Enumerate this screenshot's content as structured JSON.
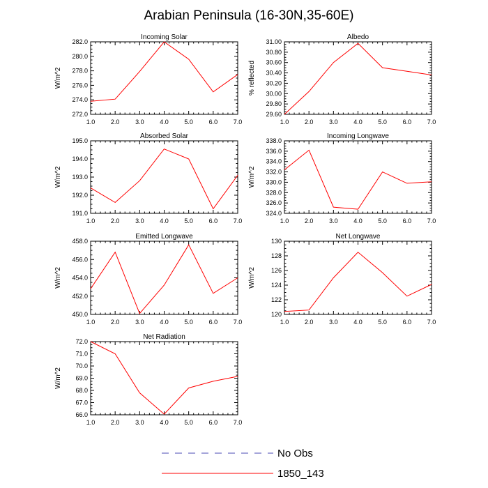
{
  "figure": {
    "title": "Arabian Peninsula (16-30N,35-60E)"
  },
  "colors": {
    "series": "#ff0000",
    "obs": "#4b4bb4",
    "axis": "#000000"
  },
  "legend": {
    "items": [
      {
        "label": "No Obs",
        "color": "#4b4bb4",
        "style": "dashed"
      },
      {
        "label": "1850_143",
        "color": "#ff0000",
        "style": "solid"
      }
    ]
  },
  "chart_data": [
    {
      "type": "line",
      "title": "Incoming Solar",
      "ylabel": "W/m^2",
      "x": [
        1,
        2,
        3,
        4,
        5,
        6,
        7
      ],
      "xlim": [
        1,
        7
      ],
      "xticks": [
        "1.0",
        "2.0",
        "3.0",
        "4.0",
        "5.0",
        "6.0",
        "7.0"
      ],
      "ylim": [
        272,
        282
      ],
      "yticks": [
        "272.0",
        "274.0",
        "276.0",
        "278.0",
        "280.0",
        "282.0"
      ],
      "series": [
        {
          "name": "1850_143",
          "values": [
            273.8,
            274.1,
            277.9,
            282.0,
            279.6,
            275.1,
            277.5
          ]
        }
      ]
    },
    {
      "type": "line",
      "title": "Albedo",
      "ylabel": "% reflected",
      "x": [
        1,
        2,
        3,
        4,
        5,
        6,
        7
      ],
      "xlim": [
        1,
        7
      ],
      "xticks": [
        "1.0",
        "2.0",
        "3.0",
        "4.0",
        "5.0",
        "6.0",
        "7.0"
      ],
      "ylim": [
        29.6,
        31.0
      ],
      "yticks": [
        "29.60",
        "29.80",
        "30.00",
        "30.20",
        "30.40",
        "30.60",
        "30.80",
        "31.00"
      ],
      "series": [
        {
          "name": "1850_143",
          "values": [
            29.6,
            30.04,
            30.6,
            30.97,
            30.5,
            30.43,
            30.36
          ]
        }
      ]
    },
    {
      "type": "line",
      "title": "Absorbed Solar",
      "ylabel": "W/m^2",
      "x": [
        1,
        2,
        3,
        4,
        5,
        6,
        7
      ],
      "xlim": [
        1,
        7
      ],
      "xticks": [
        "1.0",
        "2.0",
        "3.0",
        "4.0",
        "5.0",
        "6.0",
        "7.0"
      ],
      "ylim": [
        191,
        195
      ],
      "yticks": [
        "191.0",
        "192.0",
        "193.0",
        "194.0",
        "195.0"
      ],
      "series": [
        {
          "name": "1850_143",
          "values": [
            192.4,
            191.6,
            192.8,
            194.55,
            194.0,
            191.25,
            193.1
          ]
        }
      ]
    },
    {
      "type": "line",
      "title": "Incoming Longwave",
      "ylabel": "W/m^2",
      "x": [
        1,
        2,
        3,
        4,
        5,
        6,
        7
      ],
      "xlim": [
        1,
        7
      ],
      "xticks": [
        "1.0",
        "2.0",
        "3.0",
        "4.0",
        "5.0",
        "6.0",
        "7.0"
      ],
      "ylim": [
        324,
        338
      ],
      "yticks": [
        "324.0",
        "326.0",
        "328.0",
        "330.0",
        "332.0",
        "334.0",
        "336.0",
        "338.0"
      ],
      "series": [
        {
          "name": "1850_143",
          "values": [
            332.4,
            336.2,
            325.2,
            324.8,
            332.0,
            329.8,
            330.1
          ]
        }
      ]
    },
    {
      "type": "line",
      "title": "Emitted Longwave",
      "ylabel": "W/m^2",
      "x": [
        1,
        2,
        3,
        4,
        5,
        6,
        7
      ],
      "xlim": [
        1,
        7
      ],
      "xticks": [
        "1.0",
        "2.0",
        "3.0",
        "4.0",
        "5.0",
        "6.0",
        "7.0"
      ],
      "ylim": [
        450,
        458
      ],
      "yticks": [
        "450.0",
        "452.0",
        "454.0",
        "456.0",
        "458.0"
      ],
      "series": [
        {
          "name": "1850_143",
          "values": [
            452.8,
            456.8,
            450.1,
            453.2,
            457.6,
            452.3,
            454.0
          ]
        }
      ]
    },
    {
      "type": "line",
      "title": "Net Longwave",
      "ylabel": "W/m^2",
      "x": [
        1,
        2,
        3,
        4,
        5,
        6,
        7
      ],
      "xlim": [
        1,
        7
      ],
      "xticks": [
        "1.0",
        "2.0",
        "3.0",
        "4.0",
        "5.0",
        "6.0",
        "7.0"
      ],
      "ylim": [
        120,
        130
      ],
      "yticks": [
        "120",
        "122",
        "124",
        "126",
        "128",
        "130"
      ],
      "series": [
        {
          "name": "1850_143",
          "values": [
            120.4,
            120.6,
            125.0,
            128.5,
            125.7,
            122.5,
            124.1
          ]
        }
      ]
    },
    {
      "type": "line",
      "title": "Net Radiation",
      "ylabel": "W/m^2",
      "x": [
        1,
        2,
        3,
        4,
        5,
        6,
        7
      ],
      "xlim": [
        1,
        7
      ],
      "xticks": [
        "1.0",
        "2.0",
        "3.0",
        "4.0",
        "5.0",
        "6.0",
        "7.0"
      ],
      "ylim": [
        66,
        72
      ],
      "yticks": [
        "66.0",
        "67.0",
        "68.0",
        "69.0",
        "70.0",
        "71.0",
        "72.0"
      ],
      "series": [
        {
          "name": "1850_143",
          "values": [
            72.0,
            71.0,
            67.8,
            66.05,
            68.2,
            68.75,
            69.15
          ]
        }
      ]
    }
  ]
}
